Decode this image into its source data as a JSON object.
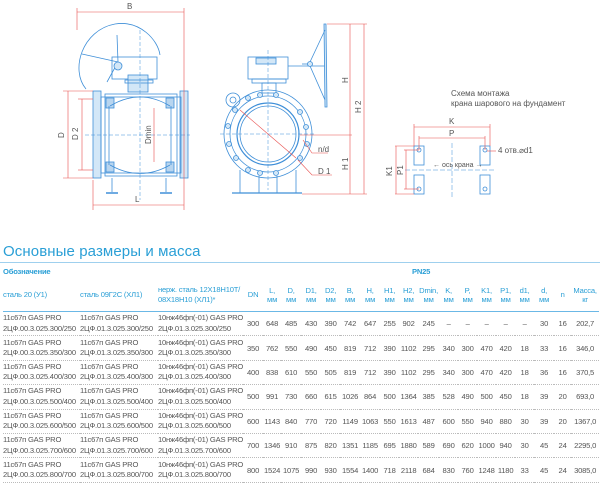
{
  "drawing": {
    "labels": {
      "B": "B",
      "D": "D",
      "D2": "D 2",
      "Dmin": "Dmin",
      "L": "L",
      "H": "H",
      "H1": "H 1",
      "H2": "H 2",
      "nd": "n/d",
      "D1": "D 1",
      "K": "K",
      "P": "P",
      "K1": "K1",
      "P1": "P1",
      "holes": "4 отв.⌀d1",
      "axis": "← ось крана →"
    },
    "scheme_caption_line1": "Схема монтажа",
    "scheme_caption_line2": "крана шарового на фундамент",
    "colors": {
      "line": "#3f8fd8",
      "fill": "#d3e7f7",
      "dimension": "#e8504f"
    }
  },
  "section_title": "Основные размеры и масса",
  "table": {
    "designation_label": "Обозначение",
    "pressure_label": "PN25",
    "material_headers": [
      "сталь 20 (У1)",
      "сталь 09Г2С (ХЛ1)",
      "нерж. сталь 12Х18Н10Т/ 08Х18Н10 (ХЛ1)*"
    ],
    "columns": [
      {
        "name": "DN",
        "unit": ""
      },
      {
        "name": "L,",
        "unit": "мм"
      },
      {
        "name": "D,",
        "unit": "мм"
      },
      {
        "name": "D1,",
        "unit": "мм"
      },
      {
        "name": "D2,",
        "unit": "мм"
      },
      {
        "name": "B,",
        "unit": "мм"
      },
      {
        "name": "H,",
        "unit": "мм"
      },
      {
        "name": "H1,",
        "unit": "мм"
      },
      {
        "name": "H2,",
        "unit": "мм"
      },
      {
        "name": "Dmin,",
        "unit": "мм"
      },
      {
        "name": "K,",
        "unit": "мм"
      },
      {
        "name": "P,",
        "unit": "мм"
      },
      {
        "name": "K1,",
        "unit": "мм"
      },
      {
        "name": "P1,",
        "unit": "мм"
      },
      {
        "name": "d1,",
        "unit": "мм"
      },
      {
        "name": "d,",
        "unit": "мм"
      },
      {
        "name": "n",
        "unit": ""
      },
      {
        "name": "Масса,",
        "unit": "кг"
      }
    ],
    "rows": [
      {
        "c1": [
          "11с67п GAS PRO",
          "2ЦФ.00.3.025.300/250"
        ],
        "c2": [
          "11с67п GAS PRO",
          "2ЦФ.01.3.025.300/250"
        ],
        "c3": [
          "10нж46фп(-01) GAS PRO",
          "2ЦФ.01.3.025.300/250"
        ],
        "values": [
          "300",
          "648",
          "485",
          "430",
          "390",
          "742",
          "647",
          "255",
          "902",
          "245",
          "–",
          "–",
          "–",
          "–",
          "–",
          "30",
          "16",
          "202,7"
        ]
      },
      {
        "c1": [
          "11с67п GAS PRO",
          "2ЦФ.00.3.025.350/300"
        ],
        "c2": [
          "11с67п GAS PRO",
          "2ЦФ.01.3.025.350/300"
        ],
        "c3": [
          "10нж46фп(-01) GAS PRO",
          "2ЦФ.01.3.025.350/300"
        ],
        "values": [
          "350",
          "762",
          "550",
          "490",
          "450",
          "819",
          "712",
          "390",
          "1102",
          "295",
          "340",
          "300",
          "470",
          "420",
          "18",
          "33",
          "16",
          "346,0"
        ]
      },
      {
        "c1": [
          "11с67п GAS PRO",
          "2ЦФ.00.3.025.400/300"
        ],
        "c2": [
          "11с67п GAS PRO",
          "2ЦФ.01.3.025.400/300"
        ],
        "c3": [
          "10нж46фп(-01) GAS PRO",
          "2ЦФ.01.3.025.400/300"
        ],
        "values": [
          "400",
          "838",
          "610",
          "550",
          "505",
          "819",
          "712",
          "390",
          "1102",
          "295",
          "340",
          "300",
          "470",
          "420",
          "18",
          "36",
          "16",
          "370,5"
        ]
      },
      {
        "c1": [
          "11с67п GAS PRO",
          "2ЦФ.00.3.025.500/400"
        ],
        "c2": [
          "11с67п GAS PRO",
          "2ЦФ.01.3.025.500/400"
        ],
        "c3": [
          "10нж46фп(-01) GAS PRO",
          "2ЦФ.01.3.025.500/400"
        ],
        "values": [
          "500",
          "991",
          "730",
          "660",
          "615",
          "1026",
          "864",
          "500",
          "1364",
          "385",
          "528",
          "490",
          "500",
          "450",
          "18",
          "39",
          "20",
          "693,0"
        ]
      },
      {
        "c1": [
          "11с67п GAS PRO",
          "2ЦФ.00.3.025.600/500"
        ],
        "c2": [
          "11с67п GAS PRO",
          "2ЦФ.01.3.025.600/500"
        ],
        "c3": [
          "10нж46фп(-01) GAS PRO",
          "2ЦФ.01.3.025.600/500"
        ],
        "values": [
          "600",
          "1143",
          "840",
          "770",
          "720",
          "1149",
          "1063",
          "550",
          "1613",
          "487",
          "600",
          "550",
          "940",
          "880",
          "30",
          "39",
          "20",
          "1367,0"
        ]
      },
      {
        "c1": [
          "11с67п GAS PRO",
          "2ЦФ.00.3.025.700/600"
        ],
        "c2": [
          "11с67п GAS PRO",
          "2ЦФ.01.3.025.700/600"
        ],
        "c3": [
          "10нж46фп(-01) GAS PRO",
          "2ЦФ.01.3.025.700/600"
        ],
        "values": [
          "700",
          "1346",
          "910",
          "875",
          "820",
          "1351",
          "1185",
          "695",
          "1880",
          "589",
          "690",
          "620",
          "1000",
          "940",
          "30",
          "45",
          "24",
          "2295,0"
        ]
      },
      {
        "c1": [
          "11с67п GAS PRO",
          "2ЦФ.00.3.025.800/700"
        ],
        "c2": [
          "11с67п GAS PRO",
          "2ЦФ.01.3.025.800/700"
        ],
        "c3": [
          "10нж46фп(-01) GAS PRO",
          "2ЦФ.01.3.025.800/700"
        ],
        "values": [
          "800",
          "1524",
          "1075",
          "990",
          "930",
          "1554",
          "1400",
          "718",
          "2118",
          "684",
          "830",
          "760",
          "1248",
          "1180",
          "33",
          "45",
          "24",
          "3085,0"
        ]
      }
    ]
  }
}
